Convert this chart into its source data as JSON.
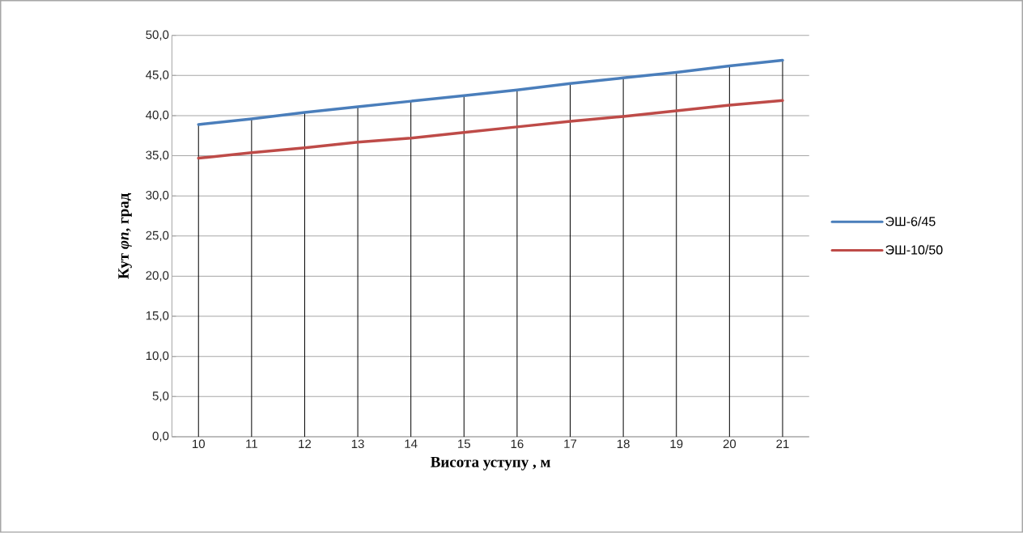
{
  "chart_data": {
    "type": "line",
    "xlabel": "Висота уступу , м",
    "ylabel": "Кут *φп*, град",
    "categories": [
      "10",
      "11",
      "12",
      "13",
      "14",
      "15",
      "16",
      "17",
      "18",
      "19",
      "20",
      "21"
    ],
    "series": [
      {
        "name": "ЭШ-6/45",
        "color": "#4a7ebb",
        "values": [
          38.9,
          39.6,
          40.4,
          41.1,
          41.8,
          42.5,
          43.2,
          44.0,
          44.7,
          45.4,
          46.2,
          46.9
        ]
      },
      {
        "name": "ЭШ-10/50",
        "color": "#be4b48",
        "values": [
          34.7,
          35.4,
          36.0,
          36.7,
          37.2,
          37.9,
          38.6,
          39.3,
          39.9,
          40.6,
          41.3,
          41.9
        ]
      }
    ],
    "ylim": [
      0,
      50
    ],
    "yticks": [
      {
        "value": 0,
        "label": "0,0"
      },
      {
        "value": 5,
        "label": "5,0"
      },
      {
        "value": 10,
        "label": "10,0"
      },
      {
        "value": 15,
        "label": "15,0"
      },
      {
        "value": 20,
        "label": "20,0"
      },
      {
        "value": 25,
        "label": "25,0"
      },
      {
        "value": 30,
        "label": "30,0"
      },
      {
        "value": 35,
        "label": "35,0"
      },
      {
        "value": 40,
        "label": "40,0"
      },
      {
        "value": 45,
        "label": "45,0"
      },
      {
        "value": 50,
        "label": "50,0"
      }
    ],
    "grid": true,
    "legend": "right",
    "marker": "none",
    "line_style": "solid"
  }
}
